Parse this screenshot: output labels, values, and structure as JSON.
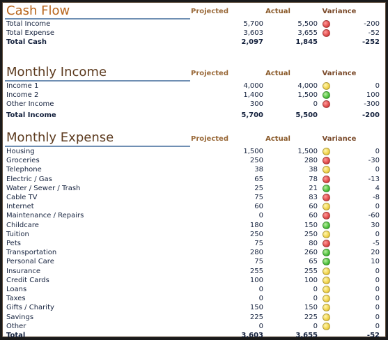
{
  "headers": {
    "projected": "Projected",
    "actual": "Actual",
    "variance": "Variance"
  },
  "cash_flow": {
    "title": "Cash Flow",
    "rows": [
      {
        "label": "Total Income",
        "projected": "5,700",
        "actual": "5,500",
        "variance": "-200",
        "status": "red"
      },
      {
        "label": "Total Expense",
        "projected": "3,603",
        "actual": "3,655",
        "variance": "-52",
        "status": "red"
      },
      {
        "label": "Total Cash",
        "projected": "2,097",
        "actual": "1,845",
        "variance": "-252",
        "status": ""
      }
    ]
  },
  "monthly_income": {
    "title": "Monthly Income",
    "rows": [
      {
        "label": "Income 1",
        "projected": "4,000",
        "actual": "4,000",
        "variance": "0",
        "status": "yellow"
      },
      {
        "label": "Income 2",
        "projected": "1,400",
        "actual": "1,500",
        "variance": "100",
        "status": "green"
      },
      {
        "label": "Other Income",
        "projected": "300",
        "actual": "0",
        "variance": "-300",
        "status": "red"
      },
      {
        "label": "Total Income",
        "projected": "5,700",
        "actual": "5,500",
        "variance": "-200",
        "status": ""
      }
    ]
  },
  "monthly_expense": {
    "title": "Monthly Expense",
    "rows": [
      {
        "label": "Housing",
        "projected": "1,500",
        "actual": "1,500",
        "variance": "0",
        "status": "yellow"
      },
      {
        "label": "Groceries",
        "projected": "250",
        "actual": "280",
        "variance": "-30",
        "status": "red"
      },
      {
        "label": "Telephone",
        "projected": "38",
        "actual": "38",
        "variance": "0",
        "status": "yellow"
      },
      {
        "label": "Electric / Gas",
        "projected": "65",
        "actual": "78",
        "variance": "-13",
        "status": "red"
      },
      {
        "label": "Water / Sewer / Trash",
        "projected": "25",
        "actual": "21",
        "variance": "4",
        "status": "green"
      },
      {
        "label": "Cable TV",
        "projected": "75",
        "actual": "83",
        "variance": "-8",
        "status": "red"
      },
      {
        "label": "Internet",
        "projected": "60",
        "actual": "60",
        "variance": "0",
        "status": "yellow"
      },
      {
        "label": "Maintenance / Repairs",
        "projected": "0",
        "actual": "60",
        "variance": "-60",
        "status": "red"
      },
      {
        "label": "Childcare",
        "projected": "180",
        "actual": "150",
        "variance": "30",
        "status": "green"
      },
      {
        "label": "Tuition",
        "projected": "250",
        "actual": "250",
        "variance": "0",
        "status": "yellow"
      },
      {
        "label": "Pets",
        "projected": "75",
        "actual": "80",
        "variance": "-5",
        "status": "red"
      },
      {
        "label": "Transportation",
        "projected": "280",
        "actual": "260",
        "variance": "20",
        "status": "green"
      },
      {
        "label": "Personal Care",
        "projected": "75",
        "actual": "65",
        "variance": "10",
        "status": "green"
      },
      {
        "label": "Insurance",
        "projected": "255",
        "actual": "255",
        "variance": "0",
        "status": "yellow"
      },
      {
        "label": "Credit Cards",
        "projected": "100",
        "actual": "100",
        "variance": "0",
        "status": "yellow"
      },
      {
        "label": "Loans",
        "projected": "0",
        "actual": "0",
        "variance": "0",
        "status": "yellow"
      },
      {
        "label": "Taxes",
        "projected": "0",
        "actual": "0",
        "variance": "0",
        "status": "yellow"
      },
      {
        "label": "Gifts / Charity",
        "projected": "150",
        "actual": "150",
        "variance": "0",
        "status": "yellow"
      },
      {
        "label": "Savings",
        "projected": "225",
        "actual": "225",
        "variance": "0",
        "status": "yellow"
      },
      {
        "label": "Other",
        "projected": "0",
        "actual": "0",
        "variance": "0",
        "status": "yellow"
      },
      {
        "label": "Total",
        "projected": "3,603",
        "actual": "3,655",
        "variance": "-52",
        "status": ""
      }
    ]
  }
}
